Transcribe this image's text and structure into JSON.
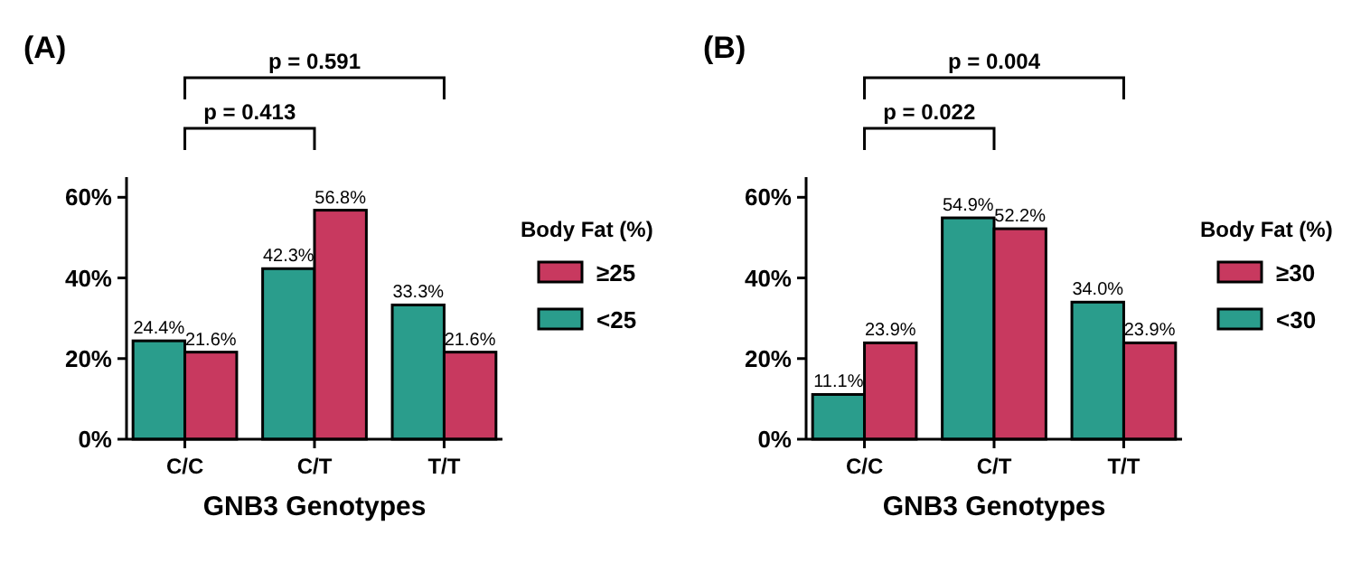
{
  "chart_data": [
    {
      "type": "bar",
      "title": "(A)",
      "xlabel": "GNB3 Genotypes",
      "legend_title": "Body Fat (%)",
      "legend": "right",
      "categories": [
        "C/C",
        "C/T",
        "T/T"
      ],
      "series": [
        {
          "name": "<25",
          "color": "#2a9d8c",
          "values": [
            24.4,
            42.3,
            33.3
          ],
          "value_labels": [
            "24.4%",
            "42.3%",
            "33.3%"
          ]
        },
        {
          "name": "≥25",
          "color": "#c8395f",
          "values": [
            21.6,
            56.8,
            21.6
          ],
          "value_labels": [
            "21.6%",
            "56.8%",
            "21.6%"
          ]
        }
      ],
      "ylim": [
        0,
        65
      ],
      "yticks": [
        {
          "value": 0,
          "label": "0%"
        },
        {
          "value": 20,
          "label": "20%"
        },
        {
          "value": 40,
          "label": "40%"
        },
        {
          "value": 60,
          "label": "60%"
        }
      ],
      "annotations": [
        "p = 0.413",
        "p = 0.591"
      ]
    },
    {
      "type": "bar",
      "title": "(B)",
      "xlabel": "GNB3 Genotypes",
      "legend_title": "Body Fat (%)",
      "legend": "right",
      "categories": [
        "C/C",
        "C/T",
        "T/T"
      ],
      "series": [
        {
          "name": "<30",
          "color": "#2a9d8c",
          "values": [
            11.1,
            54.9,
            34.0
          ],
          "value_labels": [
            "11.1%",
            "54.9%",
            "34.0%"
          ]
        },
        {
          "name": "≥30",
          "color": "#c8395f",
          "values": [
            23.9,
            52.2,
            23.9
          ],
          "value_labels": [
            "23.9%",
            "52.2%",
            "23.9%"
          ]
        }
      ],
      "ylim": [
        0,
        65
      ],
      "yticks": [
        {
          "value": 0,
          "label": "0%"
        },
        {
          "value": 20,
          "label": "20%"
        },
        {
          "value": 40,
          "label": "40%"
        },
        {
          "value": 60,
          "label": "60%"
        }
      ],
      "annotations": [
        "p = 0.022",
        "p = 0.004"
      ]
    }
  ]
}
